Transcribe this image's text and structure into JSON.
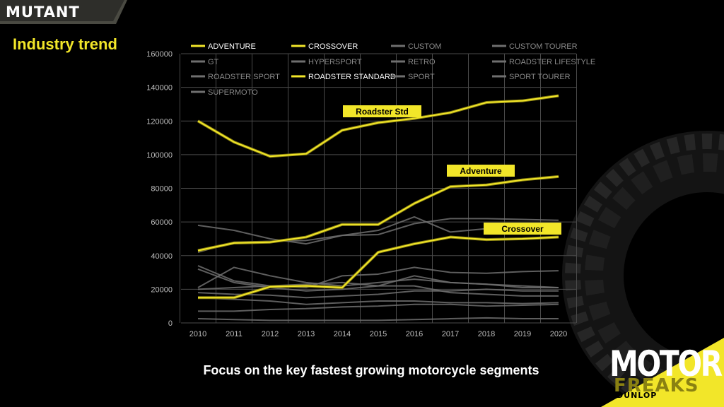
{
  "brand": {
    "name": "MUTANT",
    "accent": "#f2e629"
  },
  "slide": {
    "title": "Industry trend",
    "footnote": "Focus on the key fastest growing motorcycle segments"
  },
  "logo": {
    "word1": "MOTOR",
    "word2": "FREAKS",
    "sponsor": "DUNLOP"
  },
  "colors": {
    "highlight": "#f2e629",
    "muted": "#6f6f6f",
    "grid": "#4a4a4a",
    "axis_text": "#bdbdbd"
  },
  "chart_data": {
    "type": "line",
    "x": [
      2010,
      2011,
      2012,
      2013,
      2014,
      2015,
      2016,
      2017,
      2018,
      2019,
      2020
    ],
    "ylim": [
      0,
      160000
    ],
    "yticks": [
      0,
      20000,
      40000,
      60000,
      80000,
      100000,
      120000,
      140000,
      160000
    ],
    "grid": true,
    "legend_position": "top",
    "series": [
      {
        "name": "ADVENTURE",
        "highlight": true,
        "values": [
          43000,
          47500,
          48000,
          51000,
          58500,
          58500,
          71000,
          81000,
          82000,
          85000,
          87000
        ]
      },
      {
        "name": "CROSSOVER",
        "highlight": true,
        "values": [
          15000,
          15000,
          21500,
          22000,
          21000,
          42000,
          47000,
          51000,
          49500,
          50000,
          51000
        ]
      },
      {
        "name": "CUSTOM",
        "highlight": false,
        "values": [
          58000,
          55000,
          50000,
          47000,
          52000,
          55000,
          63000,
          54000,
          56000,
          55000,
          57000
        ]
      },
      {
        "name": "CUSTOM TOURER",
        "highlight": false,
        "values": [
          34000,
          25000,
          22000,
          21000,
          28000,
          29000,
          33000,
          30000,
          29500,
          30500,
          31000
        ]
      },
      {
        "name": "GT",
        "highlight": false,
        "values": [
          42000,
          48000,
          48500,
          49000,
          52000,
          52500,
          59000,
          62000,
          62000,
          61500,
          61000
        ]
      },
      {
        "name": "HYPERSPORT",
        "highlight": false,
        "values": [
          32000,
          24000,
          21000,
          19000,
          20000,
          22000,
          28000,
          24000,
          23000,
          22000,
          21000
        ]
      },
      {
        "name": "RETRO",
        "highlight": false,
        "values": [
          20000,
          21000,
          22000,
          23000,
          24000,
          22000,
          22000,
          18000,
          17000,
          16000,
          16000
        ]
      },
      {
        "name": "ROADSTER LIFESTYLE",
        "highlight": false,
        "values": [
          15000,
          14000,
          13000,
          11000,
          12000,
          13000,
          13000,
          12000,
          12000,
          11500,
          12000
        ]
      },
      {
        "name": "ROADSTER SPORT",
        "highlight": false,
        "values": [
          21000,
          33000,
          28000,
          24000,
          22000,
          24000,
          26000,
          24000,
          23000,
          21000,
          21000
        ]
      },
      {
        "name": "ROADSTER STANDARD",
        "highlight": true,
        "values": [
          120000,
          107500,
          99000,
          100500,
          114500,
          119000,
          121500,
          125000,
          131000,
          132000,
          135000
        ]
      },
      {
        "name": "SPORT",
        "highlight": false,
        "values": [
          18000,
          17000,
          16500,
          15000,
          16000,
          17000,
          19000,
          19000,
          20000,
          19000,
          19000
        ]
      },
      {
        "name": "SPORT TOURER",
        "highlight": false,
        "values": [
          7000,
          7000,
          8000,
          8500,
          9500,
          10000,
          11000,
          11000,
          10000,
          10500,
          11000
        ]
      },
      {
        "name": "SUPERMOTO",
        "highlight": false,
        "values": [
          2500,
          2000,
          1500,
          1500,
          1500,
          1500,
          2000,
          2500,
          3000,
          2500,
          2500
        ]
      }
    ],
    "annotations": [
      {
        "text": "Roadster Std",
        "series": "ROADSTER STANDARD"
      },
      {
        "text": "Adventure",
        "series": "ADVENTURE"
      },
      {
        "text": "Crossover",
        "series": "CROSSOVER"
      }
    ]
  }
}
